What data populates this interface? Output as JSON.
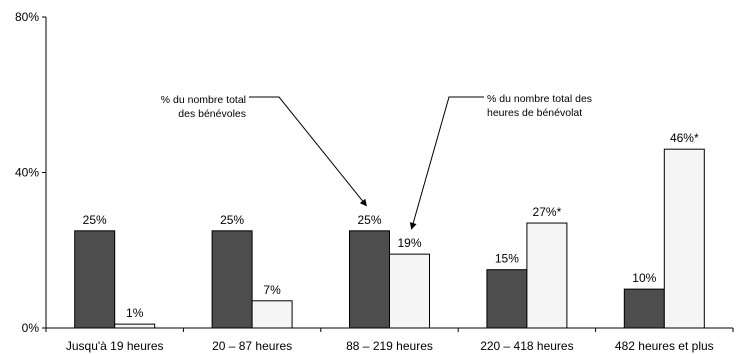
{
  "chart_data": {
    "type": "bar",
    "ylim": [
      0,
      80
    ],
    "yticks": [
      "0%",
      "40%",
      "80%"
    ],
    "ytick_values": [
      0,
      40,
      80
    ],
    "grid": false,
    "categories": [
      "Jusqu'à 19 heures",
      "20 – 87 heures",
      "88 – 219 heures",
      "220 – 418 heures",
      "482 heures et plus"
    ],
    "series": [
      {
        "values": [
          25,
          25,
          25,
          15,
          10
        ],
        "labels": [
          "25%",
          "25%",
          "25%",
          "15%",
          "10%"
        ],
        "color": "#4d4d4d"
      },
      {
        "values": [
          1,
          7,
          19,
          27,
          46
        ],
        "labels": [
          "1%",
          "7%",
          "19%",
          "27%*",
          "46%*"
        ],
        "color": "#f5f5f5"
      }
    ],
    "annotations": [
      {
        "lines": [
          "% du nombre total",
          "des bénévoles"
        ],
        "target_category": 2,
        "target_series": 0
      },
      {
        "lines": [
          "% du nombre total des",
          "heures de bénévolat"
        ],
        "target_category": 2,
        "target_series": 1
      }
    ]
  }
}
